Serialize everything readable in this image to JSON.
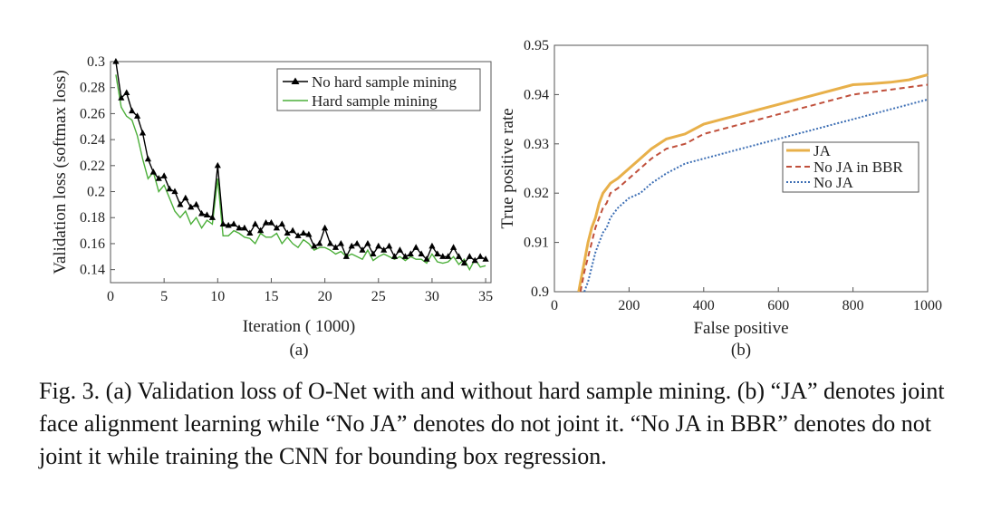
{
  "figure": {
    "caption": "Fig. 3.   (a) Validation loss of O-Net with and without hard sample mining. (b) “JA” denotes joint face alignment learning while “No JA” denotes do not joint it. “No JA in BBR” denotes do not joint it while training the CNN for bounding box regression."
  },
  "chart_data": [
    {
      "type": "line",
      "panel_label": "(a)",
      "xlabel": "Iteration (  1000)",
      "ylabel": "Validation loss (softmax loss)",
      "xlim": [
        0,
        35.5
      ],
      "ylim": [
        0.13,
        0.3
      ],
      "xticks": [
        "0",
        "5",
        "10",
        "15",
        "20",
        "25",
        "30",
        "35"
      ],
      "xtick_values": [
        0,
        5,
        10,
        15,
        20,
        25,
        30,
        35
      ],
      "yticks": [
        "0.14",
        "0.16",
        "0.18",
        "0.2",
        "0.22",
        "0.24",
        "0.26",
        "0.28",
        "0.3"
      ],
      "ytick_values": [
        0.14,
        0.16,
        0.18,
        0.2,
        0.22,
        0.24,
        0.26,
        0.28,
        0.3
      ],
      "legend_position": "top-right",
      "grid": false,
      "series": [
        {
          "name": "No hard sample mining",
          "color": "#000000",
          "marker": "triangle",
          "x": [
            0.5,
            1,
            1.5,
            2,
            2.5,
            3,
            3.5,
            4,
            4.5,
            5,
            5.5,
            6,
            6.5,
            7,
            7.5,
            8,
            8.5,
            9,
            9.5,
            10,
            10.5,
            11,
            11.5,
            12,
            12.5,
            13,
            13.5,
            14,
            14.5,
            15,
            15.5,
            16,
            16.5,
            17,
            17.5,
            18,
            18.5,
            19,
            19.5,
            20,
            20.5,
            21,
            21.5,
            22,
            22.5,
            23,
            23.5,
            24,
            24.5,
            25,
            25.5,
            26,
            26.5,
            27,
            27.5,
            28,
            28.5,
            29,
            29.5,
            30,
            30.5,
            31,
            31.5,
            32,
            32.5,
            33,
            33.5,
            34,
            34.5,
            35
          ],
          "y": [
            0.3,
            0.272,
            0.276,
            0.262,
            0.258,
            0.245,
            0.225,
            0.215,
            0.21,
            0.212,
            0.202,
            0.2,
            0.19,
            0.195,
            0.188,
            0.19,
            0.183,
            0.182,
            0.18,
            0.22,
            0.175,
            0.174,
            0.175,
            0.172,
            0.172,
            0.168,
            0.175,
            0.17,
            0.176,
            0.176,
            0.172,
            0.175,
            0.168,
            0.17,
            0.166,
            0.168,
            0.167,
            0.158,
            0.16,
            0.172,
            0.16,
            0.157,
            0.16,
            0.15,
            0.158,
            0.16,
            0.155,
            0.16,
            0.152,
            0.158,
            0.155,
            0.158,
            0.15,
            0.155,
            0.15,
            0.152,
            0.157,
            0.152,
            0.148,
            0.158,
            0.152,
            0.15,
            0.15,
            0.157,
            0.15,
            0.145,
            0.15,
            0.147,
            0.15,
            0.148
          ]
        },
        {
          "name": "Hard sample mining",
          "color": "#4caf3a",
          "marker": "none",
          "x": [
            0.5,
            1,
            1.5,
            2,
            2.5,
            3,
            3.5,
            4,
            4.5,
            5,
            5.5,
            6,
            6.5,
            7,
            7.5,
            8,
            8.5,
            9,
            9.5,
            10,
            10.5,
            11,
            11.5,
            12,
            12.5,
            13,
            13.5,
            14,
            14.5,
            15,
            15.5,
            16,
            16.5,
            17,
            17.5,
            18,
            18.5,
            19,
            19.5,
            20,
            20.5,
            21,
            21.5,
            22,
            22.5,
            23,
            23.5,
            24,
            24.5,
            25,
            25.5,
            26,
            26.5,
            27,
            27.5,
            28,
            28.5,
            29,
            29.5,
            30,
            30.5,
            31,
            31.5,
            32,
            32.5,
            33,
            33.5,
            34,
            34.5,
            35
          ],
          "y": [
            0.29,
            0.265,
            0.258,
            0.255,
            0.243,
            0.225,
            0.21,
            0.215,
            0.2,
            0.205,
            0.195,
            0.185,
            0.18,
            0.185,
            0.175,
            0.18,
            0.172,
            0.178,
            0.175,
            0.21,
            0.166,
            0.166,
            0.17,
            0.168,
            0.165,
            0.164,
            0.16,
            0.168,
            0.165,
            0.165,
            0.168,
            0.16,
            0.165,
            0.16,
            0.157,
            0.163,
            0.16,
            0.155,
            0.157,
            0.157,
            0.155,
            0.152,
            0.154,
            0.15,
            0.152,
            0.15,
            0.148,
            0.155,
            0.147,
            0.15,
            0.152,
            0.15,
            0.148,
            0.15,
            0.147,
            0.15,
            0.148,
            0.148,
            0.145,
            0.152,
            0.146,
            0.145,
            0.146,
            0.15,
            0.144,
            0.148,
            0.14,
            0.148,
            0.142,
            0.143
          ]
        }
      ]
    },
    {
      "type": "line",
      "panel_label": "(b)",
      "xlabel": "False positive",
      "ylabel": "True positive rate",
      "xlim": [
        0,
        1000
      ],
      "ylim": [
        0.9,
        0.95
      ],
      "xticks": [
        "0",
        "200",
        "400",
        "600",
        "800",
        "1000"
      ],
      "xtick_values": [
        0,
        200,
        400,
        600,
        800,
        1000
      ],
      "yticks": [
        "0.9",
        "0.91",
        "0.92",
        "0.93",
        "0.94",
        "0.95"
      ],
      "ytick_values": [
        0.9,
        0.91,
        0.92,
        0.93,
        0.94,
        0.95
      ],
      "legend_position": "center-right",
      "grid": false,
      "series": [
        {
          "name": "JA",
          "color": "#e8b04a",
          "style": "solid",
          "x": [
            65,
            70,
            80,
            90,
            100,
            110,
            120,
            130,
            140,
            150,
            170,
            200,
            230,
            260,
            300,
            350,
            400,
            450,
            500,
            550,
            600,
            650,
            700,
            750,
            800,
            850,
            900,
            950,
            1000
          ],
          "y": [
            0.9,
            0.902,
            0.906,
            0.91,
            0.913,
            0.915,
            0.918,
            0.92,
            0.921,
            0.922,
            0.923,
            0.925,
            0.927,
            0.929,
            0.931,
            0.932,
            0.934,
            0.935,
            0.936,
            0.937,
            0.938,
            0.939,
            0.94,
            0.941,
            0.942,
            0.9422,
            0.9425,
            0.943,
            0.944
          ]
        },
        {
          "name": "No JA in BBR",
          "color": "#c0503c",
          "style": "dashed",
          "x": [
            70,
            80,
            90,
            100,
            110,
            120,
            130,
            140,
            150,
            170,
            200,
            230,
            260,
            300,
            350,
            400,
            450,
            500,
            550,
            600,
            650,
            700,
            750,
            800,
            850,
            900,
            950,
            1000
          ],
          "y": [
            0.9,
            0.904,
            0.907,
            0.91,
            0.913,
            0.915,
            0.917,
            0.918,
            0.92,
            0.921,
            0.923,
            0.925,
            0.927,
            0.929,
            0.93,
            0.932,
            0.933,
            0.934,
            0.935,
            0.936,
            0.937,
            0.938,
            0.939,
            0.94,
            0.9405,
            0.941,
            0.9415,
            0.942
          ]
        },
        {
          "name": "No JA",
          "color": "#3c6eb4",
          "style": "dotted",
          "x": [
            80,
            90,
            100,
            110,
            120,
            130,
            140,
            150,
            170,
            200,
            230,
            260,
            300,
            350,
            400,
            450,
            500,
            550,
            600,
            650,
            700,
            750,
            800,
            850,
            900,
            950,
            1000
          ],
          "y": [
            0.9,
            0.902,
            0.905,
            0.908,
            0.91,
            0.912,
            0.913,
            0.915,
            0.917,
            0.919,
            0.92,
            0.922,
            0.924,
            0.926,
            0.927,
            0.928,
            0.929,
            0.93,
            0.931,
            0.932,
            0.933,
            0.934,
            0.935,
            0.936,
            0.937,
            0.938,
            0.939
          ]
        }
      ]
    }
  ]
}
